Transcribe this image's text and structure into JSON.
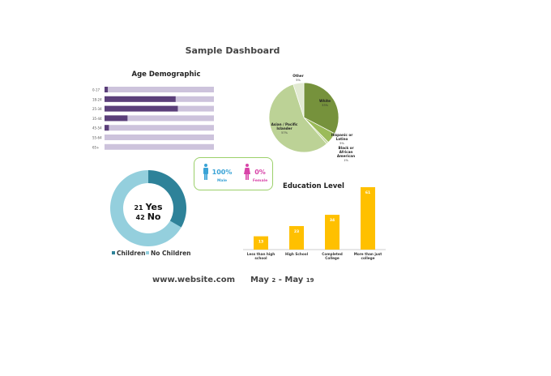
{
  "title": "Sample Dashboard",
  "chart_data": [
    {
      "type": "bar",
      "orientation": "horizontal",
      "title": "Age Demographic",
      "categories": [
        "0-17",
        "18-24",
        "25-34",
        "35-44",
        "45-54",
        "55-64",
        "65+"
      ],
      "values": [
        0.03,
        0.65,
        0.67,
        0.21,
        0.04,
        0,
        0
      ],
      "xlim": [
        0,
        1
      ],
      "colors": {
        "fill": "#5b3f7a",
        "track": "#cdc3dc"
      }
    },
    {
      "type": "pie",
      "slices": [
        {
          "label": "White",
          "value": 33,
          "text": "33%",
          "color": "#76923c"
        },
        {
          "label": "Hispanic or Latino",
          "value": 5,
          "text": "5%",
          "color": "#9bbb59"
        },
        {
          "label": "Black or African American",
          "value": 1,
          "text": "1%",
          "color": "#c3d69b"
        },
        {
          "label": "Asian / Pacific Islander",
          "value": 57,
          "text": "57%",
          "color": "#bcd296"
        },
        {
          "label": "Other",
          "value": 5,
          "text": "5%",
          "color": "#e2ead2"
        }
      ]
    },
    {
      "type": "pie",
      "variant": "donut",
      "slices": [
        {
          "label": "Children",
          "value": 21,
          "color": "#2e8299"
        },
        {
          "label": "No Children",
          "value": 42,
          "color": "#94cfdd"
        }
      ],
      "center": {
        "yes_count": "21",
        "yes_label": "Yes",
        "no_count": "42",
        "no_label": "No"
      }
    },
    {
      "type": "bar",
      "title": "Education Level",
      "categories": [
        [
          "Less than high",
          "school"
        ],
        [
          "High School"
        ],
        [
          "Completed",
          "College"
        ],
        [
          "More than just",
          "college"
        ]
      ],
      "values": [
        13,
        23,
        34,
        61
      ],
      "ylim": [
        0,
        65
      ],
      "colors": {
        "fill": "#ffc000"
      }
    }
  ],
  "gender": {
    "male": {
      "pct": "100%",
      "label": "Male",
      "color": "#3aa3d6"
    },
    "female": {
      "pct": "0%",
      "label": "Female",
      "color": "#d844a8"
    }
  },
  "footer": {
    "website": "www.website.com",
    "date_from_month": "May",
    "date_from_day": "2",
    "separator": "-",
    "date_to_month": "May",
    "date_to_day": "19"
  }
}
